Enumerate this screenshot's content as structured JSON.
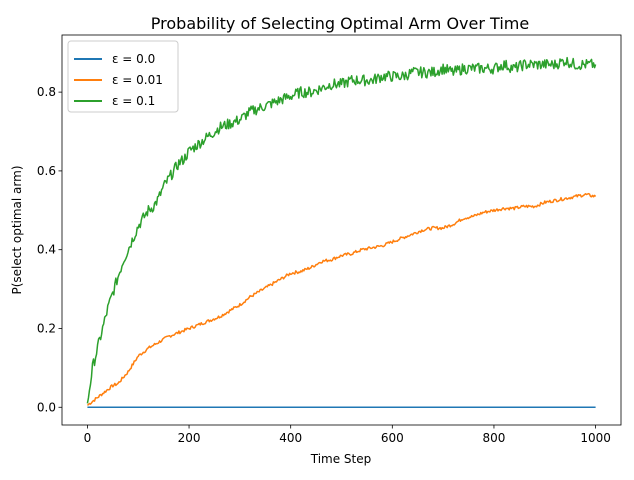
{
  "chart_data": {
    "type": "line",
    "title": "Probability of Selecting Optimal Arm Over Time",
    "xlabel": "Time Step",
    "ylabel": "P(select optimal arm)",
    "xlim": [
      -50,
      1050
    ],
    "ylim": [
      -0.045,
      0.945
    ],
    "xticks": [
      0,
      200,
      400,
      600,
      800,
      1000
    ],
    "yticks": [
      0.0,
      0.2,
      0.4,
      0.6,
      0.8
    ],
    "xtick_labels": [
      "0",
      "200",
      "400",
      "600",
      "800",
      "1000"
    ],
    "ytick_labels": [
      "0.0",
      "0.2",
      "0.4",
      "0.6",
      "0.8"
    ],
    "grid": false,
    "legend_position": "top-left",
    "series": [
      {
        "name": "ε = 0.0",
        "color": "#1f77b4",
        "x": [
          0,
          1000
        ],
        "values": [
          0.0,
          0.0
        ]
      },
      {
        "name": "ε = 0.01",
        "color": "#ff7f0e",
        "x": [
          0,
          10,
          20,
          30,
          40,
          50,
          60,
          70,
          80,
          90,
          100,
          120,
          140,
          160,
          180,
          200,
          220,
          240,
          260,
          280,
          300,
          320,
          340,
          360,
          380,
          400,
          420,
          440,
          460,
          480,
          500,
          520,
          540,
          560,
          580,
          600,
          620,
          640,
          660,
          680,
          700,
          720,
          740,
          760,
          780,
          800,
          820,
          840,
          860,
          880,
          900,
          920,
          940,
          960,
          980,
          1000
        ],
        "values": [
          0.005,
          0.015,
          0.025,
          0.035,
          0.045,
          0.055,
          0.06,
          0.075,
          0.09,
          0.11,
          0.13,
          0.15,
          0.165,
          0.18,
          0.19,
          0.2,
          0.21,
          0.22,
          0.23,
          0.245,
          0.26,
          0.28,
          0.295,
          0.31,
          0.325,
          0.34,
          0.345,
          0.355,
          0.37,
          0.375,
          0.385,
          0.39,
          0.4,
          0.405,
          0.41,
          0.42,
          0.43,
          0.44,
          0.45,
          0.455,
          0.455,
          0.465,
          0.48,
          0.485,
          0.495,
          0.5,
          0.505,
          0.505,
          0.51,
          0.51,
          0.52,
          0.525,
          0.53,
          0.535,
          0.54,
          0.535
        ]
      },
      {
        "name": "ε = 0.1",
        "color": "#2ca02c",
        "x": [
          0,
          10,
          20,
          30,
          40,
          50,
          60,
          70,
          80,
          90,
          100,
          110,
          120,
          130,
          140,
          150,
          160,
          170,
          180,
          190,
          200,
          220,
          240,
          260,
          280,
          300,
          320,
          340,
          360,
          380,
          400,
          420,
          440,
          460,
          480,
          500,
          520,
          540,
          560,
          580,
          600,
          620,
          640,
          660,
          680,
          700,
          720,
          740,
          760,
          780,
          800,
          820,
          840,
          860,
          880,
          900,
          920,
          940,
          960,
          980,
          1000
        ],
        "values": [
          0.01,
          0.1,
          0.15,
          0.2,
          0.25,
          0.29,
          0.33,
          0.37,
          0.4,
          0.43,
          0.46,
          0.48,
          0.5,
          0.51,
          0.53,
          0.56,
          0.58,
          0.6,
          0.62,
          0.63,
          0.65,
          0.67,
          0.69,
          0.71,
          0.72,
          0.73,
          0.75,
          0.76,
          0.77,
          0.78,
          0.79,
          0.8,
          0.8,
          0.81,
          0.82,
          0.82,
          0.83,
          0.83,
          0.83,
          0.84,
          0.84,
          0.84,
          0.85,
          0.85,
          0.85,
          0.86,
          0.85,
          0.86,
          0.86,
          0.86,
          0.86,
          0.87,
          0.86,
          0.87,
          0.87,
          0.87,
          0.87,
          0.88,
          0.87,
          0.87,
          0.87
        ]
      }
    ]
  }
}
